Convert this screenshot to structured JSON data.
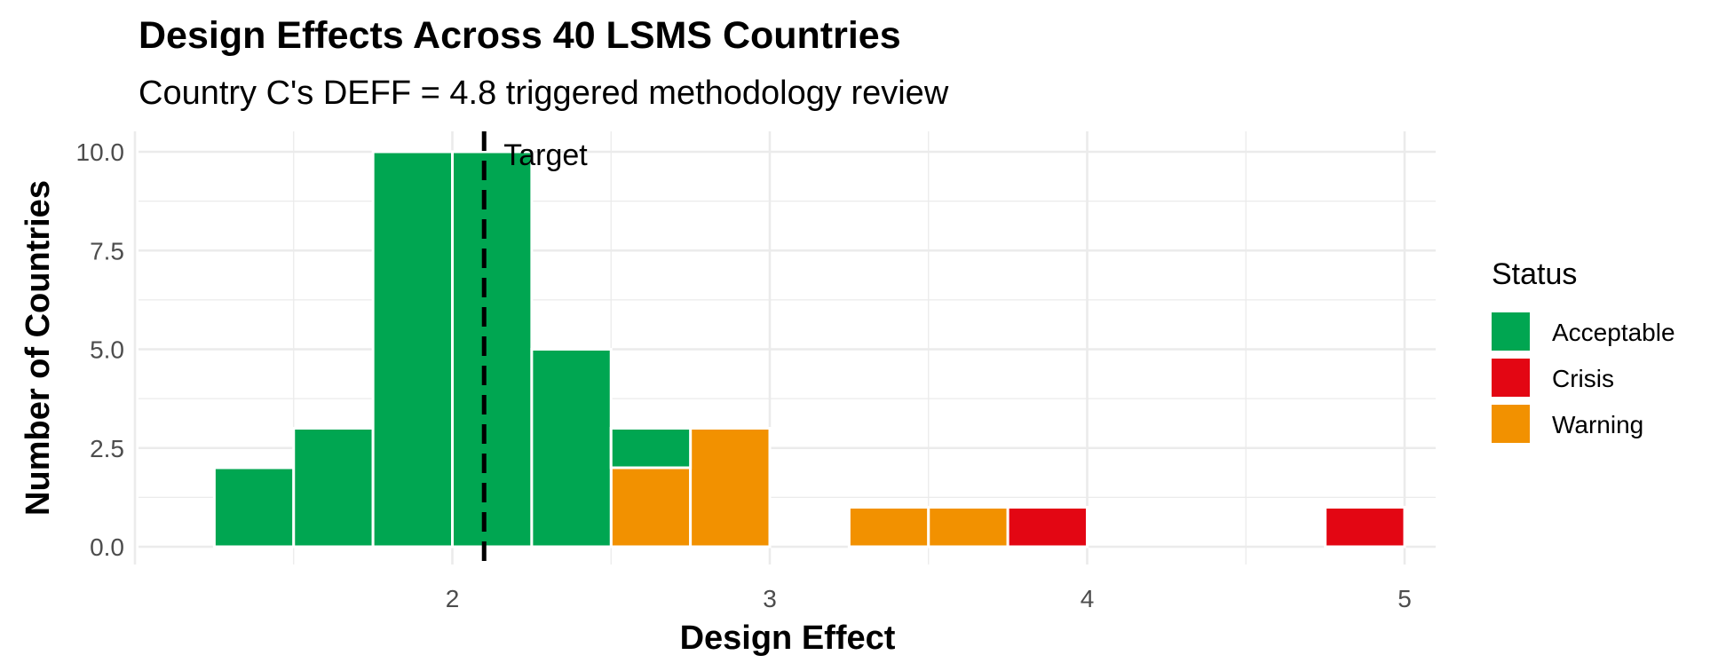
{
  "chart_data": {
    "type": "bar",
    "title": "Design Effects Across 40 LSMS Countries",
    "subtitle": "Country C's DEFF = 4.8 triggered methodology review",
    "xlabel": "Design Effect",
    "ylabel": "Number of Countries",
    "xlim": [
      1.0,
      5.1
    ],
    "ylim": [
      0,
      10.5
    ],
    "x_ticks": [
      2,
      3,
      4,
      5
    ],
    "y_ticks": [
      0,
      2.5,
      5,
      7.5,
      10
    ],
    "y_tick_labels": [
      "0.0",
      "2.5",
      "5.0",
      "7.5",
      "10.0"
    ],
    "bin_width": 0.25,
    "stacked": true,
    "grid": true,
    "legend": {
      "title": "Status",
      "position": "right",
      "entries": [
        {
          "name": "Acceptable",
          "color": "#00A651"
        },
        {
          "name": "Crisis",
          "color": "#E30613"
        },
        {
          "name": "Warning",
          "color": "#F29100"
        }
      ]
    },
    "series": [
      {
        "name": "Acceptable",
        "color": "#00A651",
        "bins": [
          {
            "x": 1.375,
            "count": 2
          },
          {
            "x": 1.625,
            "count": 3
          },
          {
            "x": 1.875,
            "count": 10
          },
          {
            "x": 2.125,
            "count": 10
          },
          {
            "x": 2.375,
            "count": 5
          },
          {
            "x": 2.625,
            "count": 1
          }
        ]
      },
      {
        "name": "Warning",
        "color": "#F29100",
        "bins": [
          {
            "x": 2.625,
            "count": 2
          },
          {
            "x": 2.875,
            "count": 3
          },
          {
            "x": 3.375,
            "count": 1
          },
          {
            "x": 3.625,
            "count": 1
          }
        ]
      },
      {
        "name": "Crisis",
        "color": "#E30613",
        "bins": [
          {
            "x": 3.875,
            "count": 1
          },
          {
            "x": 4.875,
            "count": 1
          }
        ]
      }
    ],
    "stack_order": [
      "Warning",
      "Acceptable",
      "Crisis"
    ],
    "reference_line": {
      "x": 2.1,
      "label": "Target",
      "style": "dashed",
      "color": "#000000"
    }
  }
}
